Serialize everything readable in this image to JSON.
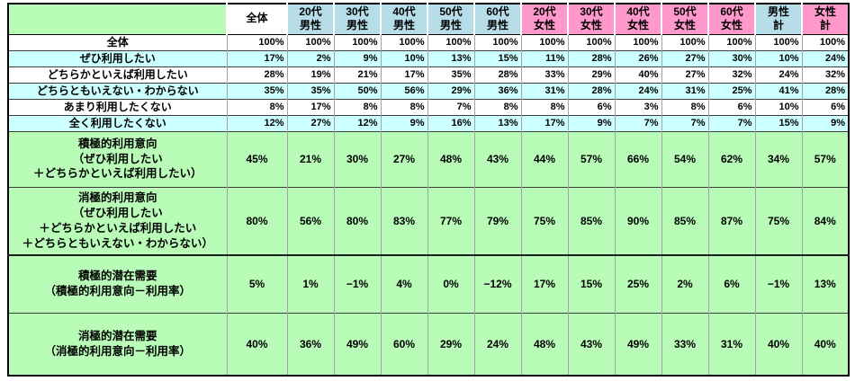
{
  "colors": {
    "total": "#FFFFFF",
    "male": "#B7DEE8",
    "female": "#FF99CC",
    "cyan_band": "#CCFFFF",
    "white_band": "#FFFFFF",
    "green": "#B8FCB8",
    "grid_inner_vertical": "#A3A3A3",
    "grid_inner_horizontal": "#3C3C3C",
    "outer_border": "#000000"
  },
  "chart_data": {
    "type": "table",
    "title": "",
    "corner_label": "",
    "columns": [
      {
        "label": "全体",
        "group": "total"
      },
      {
        "label": "20代\n男性",
        "group": "male"
      },
      {
        "label": "30代\n男性",
        "group": "male"
      },
      {
        "label": "40代\n男性",
        "group": "male"
      },
      {
        "label": "50代\n男性",
        "group": "male"
      },
      {
        "label": "60代\n男性",
        "group": "male"
      },
      {
        "label": "20代\n女性",
        "group": "female"
      },
      {
        "label": "30代\n女性",
        "group": "female"
      },
      {
        "label": "40代\n女性",
        "group": "female"
      },
      {
        "label": "50代\n女性",
        "group": "female"
      },
      {
        "label": "60代\n女性",
        "group": "female"
      },
      {
        "label": "男性\n計",
        "group": "male"
      },
      {
        "label": "女性\n計",
        "group": "female"
      }
    ],
    "rows": [
      {
        "label": "全体",
        "band": "white",
        "values": [
          "100%",
          "100%",
          "100%",
          "100%",
          "100%",
          "100%",
          "100%",
          "100%",
          "100%",
          "100%",
          "100%",
          "100%",
          "100%"
        ]
      },
      {
        "label": "ぜひ利用したい",
        "band": "cyan",
        "values": [
          "17%",
          "2%",
          "9%",
          "10%",
          "13%",
          "15%",
          "11%",
          "28%",
          "26%",
          "27%",
          "30%",
          "10%",
          "24%"
        ]
      },
      {
        "label": "どちらかといえば利用したい",
        "band": "white",
        "values": [
          "28%",
          "19%",
          "21%",
          "17%",
          "35%",
          "28%",
          "33%",
          "29%",
          "40%",
          "27%",
          "32%",
          "24%",
          "32%"
        ]
      },
      {
        "label": "どちらともいえない・わからない",
        "band": "cyan",
        "values": [
          "35%",
          "35%",
          "50%",
          "56%",
          "29%",
          "36%",
          "31%",
          "28%",
          "24%",
          "31%",
          "25%",
          "41%",
          "28%"
        ]
      },
      {
        "label": "あまり利用したくない",
        "band": "white",
        "values": [
          "8%",
          "17%",
          "8%",
          "8%",
          "7%",
          "8%",
          "8%",
          "6%",
          "3%",
          "8%",
          "6%",
          "10%",
          "6%"
        ]
      },
      {
        "label": "全く利用したくない",
        "band": "cyan",
        "values": [
          "12%",
          "27%",
          "12%",
          "9%",
          "16%",
          "13%",
          "17%",
          "9%",
          "7%",
          "7%",
          "7%",
          "15%",
          "9%"
        ]
      }
    ],
    "summary_rows": [
      {
        "label": "積極的利用意向\n（ぜひ利用したい\n＋どちらかといえば利用したい）",
        "values": [
          "45%",
          "21%",
          "30%",
          "27%",
          "48%",
          "43%",
          "44%",
          "57%",
          "66%",
          "54%",
          "62%",
          "34%",
          "57%"
        ]
      },
      {
        "label": "消極的利用意向\n（ぜひ利用したい\n＋どちらかといえば利用したい\n＋どちらともいえない・わからない）",
        "values": [
          "80%",
          "56%",
          "80%",
          "83%",
          "77%",
          "79%",
          "75%",
          "85%",
          "90%",
          "85%",
          "87%",
          "75%",
          "84%"
        ]
      },
      {
        "label": "積極的潜在需要\n（積極的利用意向－利用率）",
        "values": [
          "5%",
          "1%",
          "−1%",
          "4%",
          "0%",
          "−12%",
          "17%",
          "15%",
          "25%",
          "2%",
          "6%",
          "−1%",
          "13%"
        ]
      },
      {
        "label": "消極的潜在需要\n（消極的利用意向－利用率）",
        "values": [
          "40%",
          "36%",
          "49%",
          "60%",
          "29%",
          "24%",
          "48%",
          "43%",
          "49%",
          "33%",
          "31%",
          "40%",
          "40%"
        ]
      }
    ]
  }
}
